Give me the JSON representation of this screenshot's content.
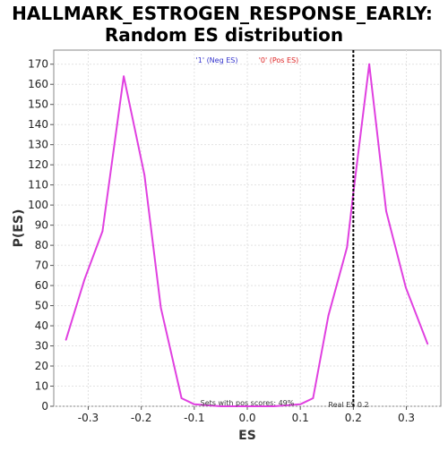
{
  "chart_data": {
    "type": "line",
    "title_lines": [
      "HALLMARK_ESTROGEN_RESPONSE_EARLY:",
      "Random ES distribution"
    ],
    "xlabel": "ES",
    "ylabel": "P(ES)",
    "xlim": [
      -0.365,
      0.365
    ],
    "ylim": [
      0,
      177
    ],
    "x_ticks": [
      -0.3,
      -0.2,
      -0.1,
      0.0,
      0.1,
      0.2,
      0.3
    ],
    "x_tick_labels": [
      "-0.3",
      "-0.2",
      "-0.1",
      "0.0",
      "0.1",
      "0.2",
      "0.3"
    ],
    "y_ticks": [
      0,
      10,
      20,
      30,
      40,
      50,
      60,
      70,
      80,
      90,
      100,
      110,
      120,
      130,
      140,
      150,
      160,
      170
    ],
    "grid": true,
    "legend": {
      "placement": "top-center",
      "entries": [
        {
          "label": "'1' (Neg ES)",
          "color": "#3333cc"
        },
        {
          "label": "'0' (Pos ES)",
          "color": "#dd2222"
        }
      ]
    },
    "series": [
      {
        "color": "#e040e0",
        "x": [
          -0.342,
          -0.307,
          -0.273,
          -0.233,
          -0.194,
          -0.163,
          -0.124,
          -0.1,
          -0.05,
          0.0,
          0.05,
          0.1,
          0.124,
          0.153,
          0.188,
          0.199,
          0.23,
          0.262,
          0.299,
          0.34
        ],
        "y": [
          33,
          63,
          87,
          164,
          115,
          49,
          4,
          1,
          0,
          0,
          0,
          1,
          4,
          45,
          79,
          104,
          170,
          97,
          59,
          31
        ]
      }
    ],
    "reference_line": {
      "x": 0.2,
      "label": "Real ES 0.2",
      "style": "dotted",
      "color": "#000000"
    },
    "annotation": {
      "text": "Sets with pos scores: 49%"
    }
  }
}
